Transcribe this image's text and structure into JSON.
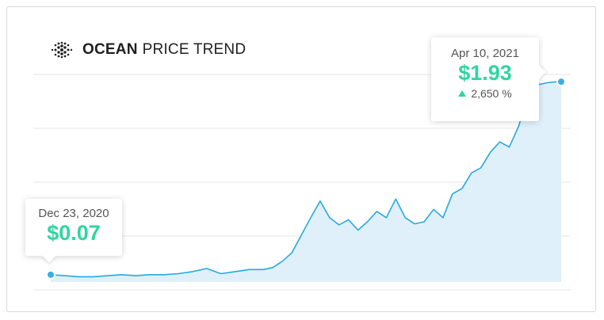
{
  "header": {
    "brand": "OCEAN",
    "rest": "PRICE TREND",
    "logo_icon": "ocean-protocol-dots-logo"
  },
  "colors": {
    "line": "#29a8e0",
    "area": "#dff0fa",
    "accent": "#2fd6a0",
    "grid": "#e6e6e6",
    "point": "#3aaee5"
  },
  "start_callout": {
    "date": "Dec 23, 2020",
    "price": "$0.07"
  },
  "end_callout": {
    "date": "Apr 10, 2021",
    "price": "$1.93",
    "change": "2,650 %"
  },
  "chart_data": {
    "type": "area",
    "title": "OCEAN PRICE TREND",
    "xlabel": "",
    "ylabel": "",
    "x_range": [
      "2020-12-23",
      "2021-04-10"
    ],
    "ylim": [
      0,
      2.0
    ],
    "grid": true,
    "series": [
      {
        "x": [
          "2020-12-23",
          "2020-12-26",
          "2020-12-29",
          "2021-01-01",
          "2021-01-04",
          "2021-01-07",
          "2021-01-10",
          "2021-01-13",
          "2021-01-16",
          "2021-01-19",
          "2021-01-22",
          "2021-01-25",
          "2021-01-28",
          "2021-01-31",
          "2021-02-03",
          "2021-02-06",
          "2021-02-08",
          "2021-02-10",
          "2021-02-12",
          "2021-02-14",
          "2021-02-16",
          "2021-02-18",
          "2021-02-20",
          "2021-02-22",
          "2021-02-24",
          "2021-02-26",
          "2021-02-28",
          "2021-03-02",
          "2021-03-04",
          "2021-03-06",
          "2021-03-08",
          "2021-03-10",
          "2021-03-12",
          "2021-03-14",
          "2021-03-16",
          "2021-03-18",
          "2021-03-20",
          "2021-03-22",
          "2021-03-24",
          "2021-03-26",
          "2021-03-28",
          "2021-03-30",
          "2021-04-01",
          "2021-04-03",
          "2021-04-05",
          "2021-04-07",
          "2021-04-09",
          "2021-04-10"
        ],
        "y": [
          0.07,
          0.06,
          0.05,
          0.05,
          0.06,
          0.07,
          0.06,
          0.07,
          0.07,
          0.08,
          0.1,
          0.13,
          0.08,
          0.1,
          0.12,
          0.12,
          0.14,
          0.2,
          0.28,
          0.45,
          0.62,
          0.78,
          0.62,
          0.55,
          0.6,
          0.5,
          0.58,
          0.68,
          0.62,
          0.8,
          0.62,
          0.56,
          0.58,
          0.7,
          0.62,
          0.85,
          0.9,
          1.05,
          1.1,
          1.25,
          1.35,
          1.3,
          1.5,
          1.8,
          1.9,
          1.92,
          1.93,
          1.93
        ]
      }
    ]
  }
}
